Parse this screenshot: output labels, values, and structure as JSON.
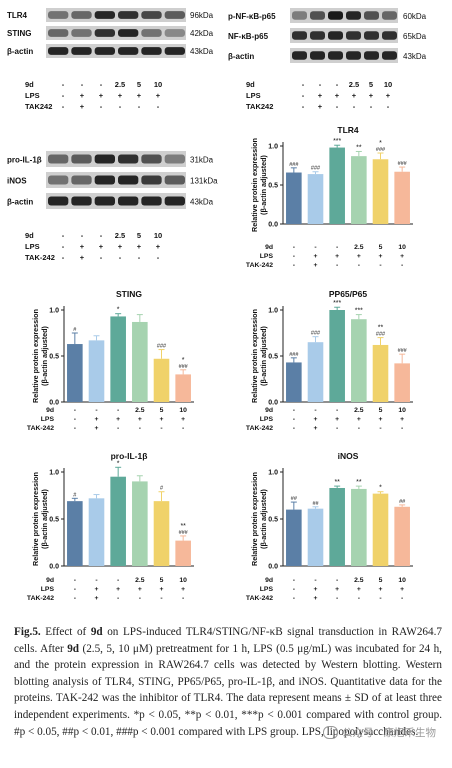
{
  "blot_panels": [
    {
      "lanes": 6,
      "rows": [
        {
          "label": "TLR4",
          "kda": "96kDa",
          "intensities": [
            0.55,
            0.6,
            0.9,
            0.85,
            0.75,
            0.65
          ]
        },
        {
          "label": "STING",
          "kda": "42kDa",
          "intensities": [
            0.6,
            0.55,
            0.85,
            0.9,
            0.55,
            0.45
          ]
        },
        {
          "label": "β-actin",
          "kda": "43kDa",
          "intensities": [
            0.9,
            0.9,
            0.9,
            0.9,
            0.9,
            0.9
          ]
        }
      ],
      "treatment_rows": [
        {
          "label": "9d",
          "values": [
            "-",
            "-",
            "-",
            "2.5",
            "5",
            "10"
          ]
        },
        {
          "label": "LPS",
          "values": [
            "-",
            "+",
            "+",
            "+",
            "+",
            "+"
          ]
        },
        {
          "label": "TAK242",
          "values": [
            "-",
            "+",
            "-",
            "-",
            "-",
            "-"
          ]
        }
      ]
    },
    {
      "lanes": 6,
      "rows": [
        {
          "label": "p-NF-κB-p65",
          "kda": "60kDa",
          "intensities": [
            0.5,
            0.7,
            0.95,
            0.9,
            0.7,
            0.6
          ]
        },
        {
          "label": "NF-κB-p65",
          "kda": "65kDa",
          "intensities": [
            0.85,
            0.85,
            0.9,
            0.85,
            0.85,
            0.85
          ]
        },
        {
          "label": "β-actin",
          "kda": "43kDa",
          "intensities": [
            0.9,
            0.9,
            0.9,
            0.9,
            0.9,
            0.9
          ]
        }
      ],
      "treatment_rows": [
        {
          "label": "9d",
          "values": [
            "-",
            "-",
            "-",
            "2.5",
            "5",
            "10"
          ]
        },
        {
          "label": "LPS",
          "values": [
            "-",
            "+",
            "+",
            "+",
            "+",
            "+"
          ]
        },
        {
          "label": "TAK242",
          "values": [
            "-",
            "+",
            "-",
            "-",
            "-",
            "-"
          ]
        }
      ]
    },
    {
      "lanes": 6,
      "rows": [
        {
          "label": "pro-IL-1β",
          "kda": "31kDa",
          "intensities": [
            0.6,
            0.65,
            0.9,
            0.85,
            0.7,
            0.5
          ]
        },
        {
          "label": "iNOS",
          "kda": "131kDa",
          "intensities": [
            0.55,
            0.6,
            0.9,
            0.9,
            0.8,
            0.65
          ]
        },
        {
          "label": "β-actin",
          "kda": "43kDa",
          "intensities": [
            0.9,
            0.9,
            0.9,
            0.9,
            0.9,
            0.9
          ]
        }
      ],
      "treatment_rows": [
        {
          "label": "9d",
          "values": [
            "-",
            "-",
            "-",
            "2.5",
            "5",
            "10"
          ]
        },
        {
          "label": "LPS",
          "values": [
            "-",
            "+",
            "+",
            "+",
            "+",
            "+"
          ]
        },
        {
          "label": "TAK-242",
          "values": [
            "-",
            "+",
            "-",
            "-",
            "-",
            "-"
          ]
        }
      ]
    }
  ],
  "bar_colors": [
    "#5b7fa6",
    "#a9cbe9",
    "#5ea999",
    "#a6d3b0",
    "#f0d26a",
    "#f6b89a"
  ],
  "chart_data": [
    {
      "type": "bar",
      "title": "TLR4",
      "ylabel": "Relative protein expression",
      "ylabel2": "(β-actin adjusted)",
      "ylim": [
        0,
        1.0
      ],
      "yticks": [
        "0.0",
        "0.5",
        "1.0"
      ],
      "values": [
        0.66,
        0.64,
        0.98,
        0.87,
        0.83,
        0.67
      ],
      "errors": [
        0.06,
        0.03,
        0.03,
        0.06,
        0.08,
        0.06
      ],
      "sig_star": [
        "",
        "",
        "***",
        "**",
        "*",
        ""
      ],
      "sig_hash": [
        "###",
        "###",
        "",
        "",
        "###",
        "###"
      ],
      "treatment_rows": [
        {
          "label": "9d",
          "values": [
            "-",
            "-",
            "-",
            "2.5",
            "5",
            "10"
          ]
        },
        {
          "label": "LPS",
          "values": [
            "-",
            "+",
            "+",
            "+",
            "+",
            "+"
          ]
        },
        {
          "label": "TAK-242",
          "values": [
            "-",
            "+",
            "-",
            "-",
            "-",
            "-"
          ]
        }
      ]
    },
    {
      "type": "bar",
      "title": "STING",
      "ylabel": "Relative protein expression",
      "ylabel2": "(β-actin adjusted)",
      "ylim": [
        0,
        1.0
      ],
      "yticks": [
        "0.0",
        "0.5",
        "1.0"
      ],
      "values": [
        0.63,
        0.67,
        0.93,
        0.87,
        0.47,
        0.3
      ],
      "errors": [
        0.12,
        0.05,
        0.03,
        0.08,
        0.1,
        0.05
      ],
      "sig_star": [
        "",
        "",
        "*",
        "",
        "",
        "*"
      ],
      "sig_hash": [
        "#",
        "",
        "",
        "",
        "###",
        "###"
      ],
      "treatment_rows": [
        {
          "label": "9d",
          "values": [
            "-",
            "-",
            "-",
            "2.5",
            "5",
            "10"
          ]
        },
        {
          "label": "LPS",
          "values": [
            "-",
            "+",
            "+",
            "+",
            "+",
            "+"
          ]
        },
        {
          "label": "TAK-242",
          "values": [
            "-",
            "+",
            "-",
            "-",
            "-",
            "-"
          ]
        }
      ]
    },
    {
      "type": "bar",
      "title": "PP65/P65",
      "ylabel": "Relative protein expression",
      "ylabel2": "(β-actin adjusted)",
      "ylim": [
        0,
        1.0
      ],
      "yticks": [
        "0.0",
        "0.5",
        "1.0"
      ],
      "values": [
        0.43,
        0.65,
        1.0,
        0.9,
        0.62,
        0.42
      ],
      "errors": [
        0.05,
        0.06,
        0.03,
        0.05,
        0.08,
        0.1
      ],
      "sig_star": [
        "",
        "",
        "***",
        "***",
        "**",
        ""
      ],
      "sig_hash": [
        "###",
        "###",
        "",
        "",
        "###",
        "###"
      ],
      "treatment_rows": [
        {
          "label": "9d",
          "values": [
            "-",
            "-",
            "-",
            "2.5",
            "5",
            "10"
          ]
        },
        {
          "label": "LPS",
          "values": [
            "-",
            "+",
            "+",
            "+",
            "+",
            "+"
          ]
        },
        {
          "label": "TAK-242",
          "values": [
            "-",
            "+",
            "-",
            "-",
            "-",
            "-"
          ]
        }
      ]
    },
    {
      "type": "bar",
      "title": "pro-IL-1β",
      "ylabel": "Relative protein expression",
      "ylabel2": "(β-actin adjusted)",
      "ylim": [
        0,
        1.0
      ],
      "yticks": [
        "0.0",
        "0.5",
        "1.0"
      ],
      "values": [
        0.69,
        0.72,
        0.95,
        0.9,
        0.69,
        0.27
      ],
      "errors": [
        0.03,
        0.04,
        0.1,
        0.06,
        0.1,
        0.05
      ],
      "sig_star": [
        "",
        "",
        "*",
        "",
        "",
        "**"
      ],
      "sig_hash": [
        "#",
        "",
        "",
        "",
        "#",
        "###"
      ],
      "treatment_rows": [
        {
          "label": "9d",
          "values": [
            "-",
            "-",
            "-",
            "2.5",
            "5",
            "10"
          ]
        },
        {
          "label": "LPS",
          "values": [
            "-",
            "+",
            "+",
            "+",
            "+",
            "+"
          ]
        },
        {
          "label": "TAK-242",
          "values": [
            "-",
            "+",
            "-",
            "-",
            "-",
            "-"
          ]
        }
      ]
    },
    {
      "type": "bar",
      "title": "iNOS",
      "ylabel": "Relative protein expression",
      "ylabel2": "(β-actin adjusted)",
      "ylim": [
        0,
        1.0
      ],
      "yticks": [
        "0.0",
        "0.5",
        "1.0"
      ],
      "values": [
        0.6,
        0.61,
        0.83,
        0.82,
        0.77,
        0.63
      ],
      "errors": [
        0.08,
        0.02,
        0.02,
        0.03,
        0.02,
        0.02
      ],
      "sig_star": [
        "",
        "",
        "**",
        "**",
        "*",
        ""
      ],
      "sig_hash": [
        "##",
        "##",
        "",
        "",
        "",
        "##"
      ],
      "treatment_rows": [
        {
          "label": "9d",
          "values": [
            "-",
            "-",
            "-",
            "2.5",
            "5",
            "10"
          ]
        },
        {
          "label": "LPS",
          "values": [
            "-",
            "+",
            "+",
            "+",
            "+",
            "+"
          ]
        },
        {
          "label": "TAK-242",
          "values": [
            "-",
            "+",
            "-",
            "-",
            "-",
            "-"
          ]
        }
      ]
    }
  ],
  "caption": {
    "fig_label": "Fig.5.",
    "text_1": " Effect of ",
    "compound": "9d",
    "text_2": " on LPS-induced TLR4/STING/NF-κB signal transduction in RAW264.7 cells. After ",
    "compound2": "9d",
    "text_3": " (2.5, 5, 10 μM) pretreatment for 1 h, LPS (0.5 μg/mL) was incubated for 24 h, and the protein expression in RAW264.7 cells was detected by Western blotting. Western blotting analysis of TLR4, STING, PP65/P65, pro-IL-1β, and iNOS. Quantitative data for the proteins. TAK-242 was the inhibitor of TLR4. The data represent means ± SD of at least three independent experiments. *p < 0.05, **p < 0.01, ***p < 0.001 compared with control group. #p < 0.05, ##p < 0.01, ###p < 0.001 compared with LPS group. LPS, lipopolysaccharides."
  },
  "watermark": "公众号 · 康旭禾生物"
}
